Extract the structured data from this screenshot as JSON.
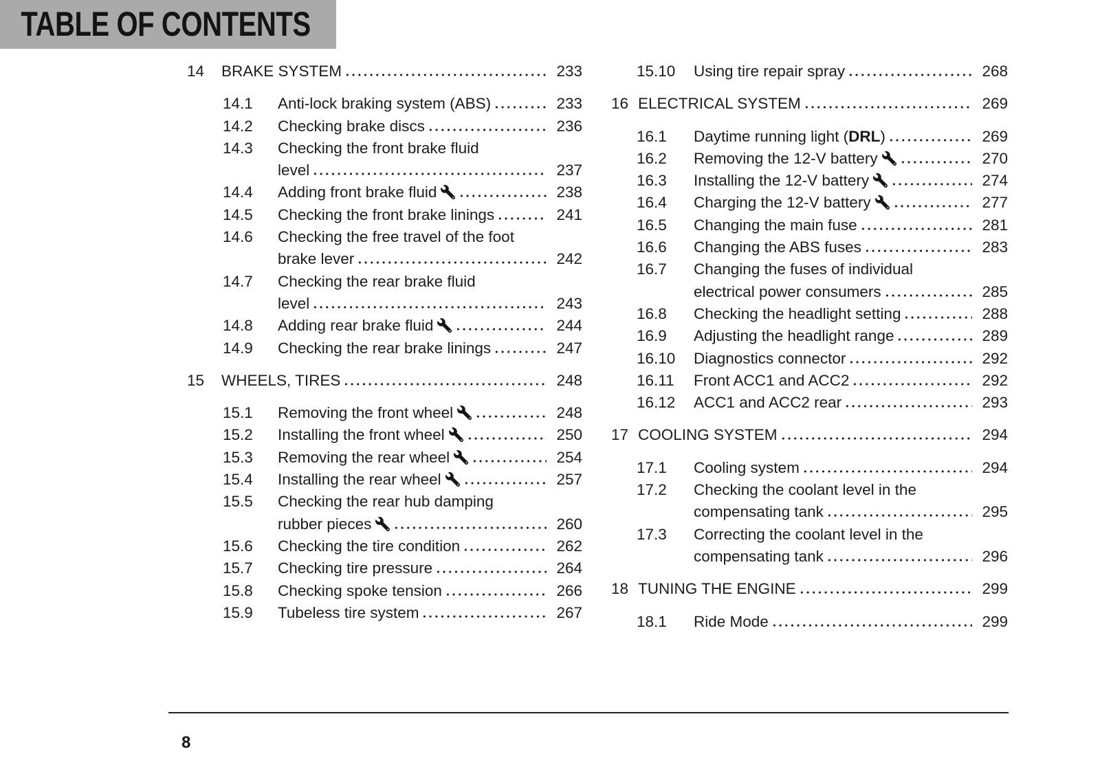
{
  "page": {
    "header_title": "TABLE OF CONTENTS",
    "page_number": "8",
    "colors": {
      "header_bg": "#aaaaaa",
      "text": "#1c1c1c",
      "rule": "#222222"
    }
  },
  "icons": {
    "wrench": "wrench-icon"
  },
  "toc": {
    "columns": [
      {
        "id": "left",
        "entries": [
          {
            "type": "chapter",
            "num": "14",
            "lines": [
              "BRAKE SYSTEM"
            ],
            "page": "233"
          },
          {
            "type": "section",
            "num": "14.1",
            "lines": [
              "Anti-lock braking system (ABS)"
            ],
            "page": "233"
          },
          {
            "type": "section",
            "num": "14.2",
            "lines": [
              "Checking brake discs"
            ],
            "page": "236"
          },
          {
            "type": "section",
            "num": "14.3",
            "lines": [
              "Checking the front brake fluid",
              "level"
            ],
            "page": "237"
          },
          {
            "type": "section",
            "num": "14.4",
            "lines": [
              "Adding front brake fluid"
            ],
            "wrench": true,
            "page": "238"
          },
          {
            "type": "section",
            "num": "14.5",
            "lines": [
              "Checking the front brake linings"
            ],
            "page": "241"
          },
          {
            "type": "section",
            "num": "14.6",
            "lines": [
              "Checking the free travel of the foot",
              "brake lever"
            ],
            "page": "242"
          },
          {
            "type": "section",
            "num": "14.7",
            "lines": [
              "Checking the rear brake fluid",
              "level"
            ],
            "page": "243"
          },
          {
            "type": "section",
            "num": "14.8",
            "lines": [
              "Adding rear brake fluid"
            ],
            "wrench": true,
            "page": "244"
          },
          {
            "type": "section",
            "num": "14.9",
            "lines": [
              "Checking the rear brake linings"
            ],
            "page": "247"
          },
          {
            "type": "chapter",
            "num": "15",
            "lines": [
              "WHEELS, TIRES"
            ],
            "page": "248"
          },
          {
            "type": "section",
            "num": "15.1",
            "lines": [
              "Removing the front wheel"
            ],
            "wrench": true,
            "page": "248"
          },
          {
            "type": "section",
            "num": "15.2",
            "lines": [
              "Installing the front wheel"
            ],
            "wrench": true,
            "page": "250"
          },
          {
            "type": "section",
            "num": "15.3",
            "lines": [
              "Removing the rear wheel"
            ],
            "wrench": true,
            "page": "254"
          },
          {
            "type": "section",
            "num": "15.4",
            "lines": [
              "Installing the rear wheel"
            ],
            "wrench": true,
            "page": "257"
          },
          {
            "type": "section",
            "num": "15.5",
            "lines": [
              "Checking the rear hub damping",
              "rubber pieces"
            ],
            "wrench": true,
            "page": "260"
          },
          {
            "type": "section",
            "num": "15.6",
            "lines": [
              "Checking the tire condition"
            ],
            "page": "262"
          },
          {
            "type": "section",
            "num": "15.7",
            "lines": [
              "Checking tire pressure"
            ],
            "page": "264"
          },
          {
            "type": "section",
            "num": "15.8",
            "lines": [
              "Checking spoke tension"
            ],
            "page": "266"
          },
          {
            "type": "section",
            "num": "15.9",
            "lines": [
              "Tubeless tire system"
            ],
            "page": "267"
          }
        ]
      },
      {
        "id": "right",
        "entries": [
          {
            "type": "section",
            "num": "15.10",
            "lines": [
              "Using tire repair spray"
            ],
            "page": "268"
          },
          {
            "type": "chapter",
            "num": "16",
            "lines": [
              "ELECTRICAL SYSTEM"
            ],
            "page": "269"
          },
          {
            "type": "section",
            "num": "16.1",
            "lines": [
              "Daytime running light (**DRL**)"
            ],
            "page": "269"
          },
          {
            "type": "section",
            "num": "16.2",
            "lines": [
              "Removing the 12-V battery"
            ],
            "wrench": true,
            "page": "270"
          },
          {
            "type": "section",
            "num": "16.3",
            "lines": [
              "Installing the 12-V battery"
            ],
            "wrench": true,
            "page": "274"
          },
          {
            "type": "section",
            "num": "16.4",
            "lines": [
              "Charging the 12-V battery"
            ],
            "wrench": true,
            "page": "277"
          },
          {
            "type": "section",
            "num": "16.5",
            "lines": [
              "Changing the main fuse"
            ],
            "page": "281"
          },
          {
            "type": "section",
            "num": "16.6",
            "lines": [
              "Changing the ABS fuses"
            ],
            "page": "283"
          },
          {
            "type": "section",
            "num": "16.7",
            "lines": [
              "Changing the fuses of individual",
              "electrical power consumers"
            ],
            "page": "285"
          },
          {
            "type": "section",
            "num": "16.8",
            "lines": [
              "Checking the headlight setting"
            ],
            "page": "288"
          },
          {
            "type": "section",
            "num": "16.9",
            "lines": [
              "Adjusting the headlight range"
            ],
            "page": "289"
          },
          {
            "type": "section",
            "num": "16.10",
            "lines": [
              "Diagnostics connector"
            ],
            "page": "292"
          },
          {
            "type": "section",
            "num": "16.11",
            "lines": [
              "Front ACC1 and ACC2"
            ],
            "page": "292"
          },
          {
            "type": "section",
            "num": "16.12",
            "lines": [
              "ACC1 and ACC2 rear"
            ],
            "page": "293"
          },
          {
            "type": "chapter",
            "num": "17",
            "lines": [
              "COOLING SYSTEM"
            ],
            "page": "294"
          },
          {
            "type": "section",
            "num": "17.1",
            "lines": [
              "Cooling system"
            ],
            "page": "294"
          },
          {
            "type": "section",
            "num": "17.2",
            "lines": [
              "Checking the coolant level in the",
              "compensating tank"
            ],
            "page": "295"
          },
          {
            "type": "section",
            "num": "17.3",
            "lines": [
              "Correcting the coolant level in the",
              "compensating tank"
            ],
            "page": "296"
          },
          {
            "type": "chapter",
            "num": "18",
            "lines": [
              "TUNING THE ENGINE"
            ],
            "page": "299"
          },
          {
            "type": "section",
            "num": "18.1",
            "lines": [
              "Ride Mode"
            ],
            "page": "299"
          }
        ]
      }
    ]
  }
}
